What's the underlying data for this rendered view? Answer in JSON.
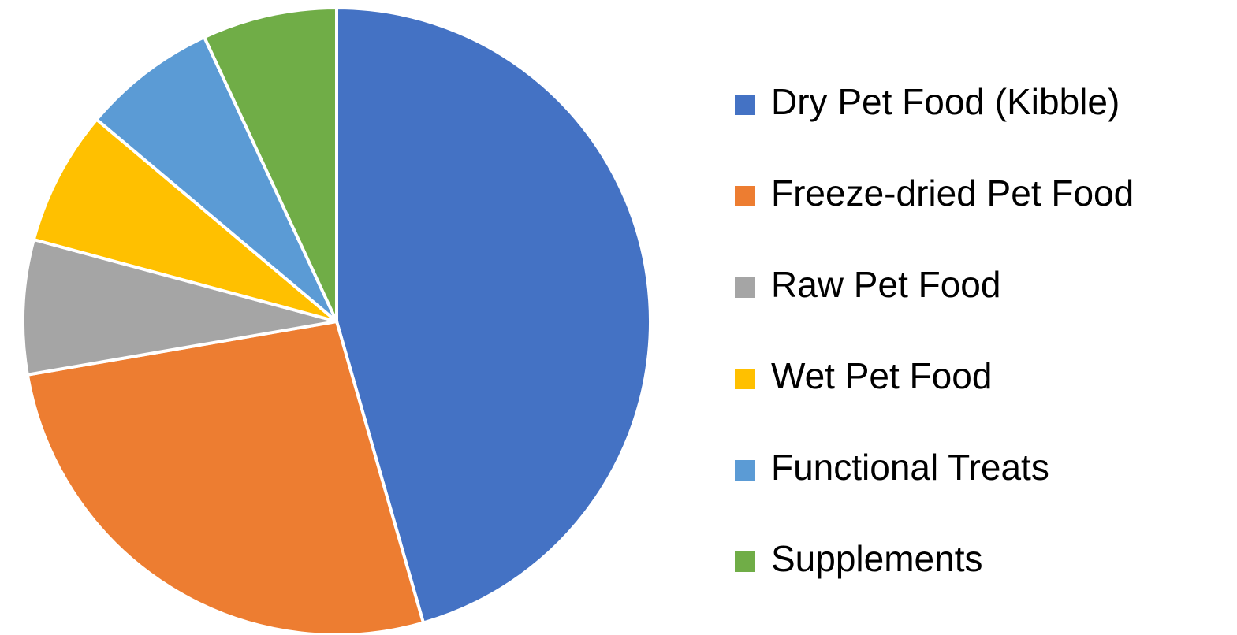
{
  "chart_data": {
    "type": "pie",
    "categories": [
      "Dry Pet Food (Kibble)",
      "Freeze-dried Pet Food",
      "Raw Pet Food",
      "Wet Pet Food",
      "Functional Treats",
      "Supplements"
    ],
    "values": [
      46,
      27,
      7,
      7,
      7,
      7
    ],
    "colors": [
      "#4472c4",
      "#ed7d31",
      "#a5a5a5",
      "#ffc000",
      "#5b9bd5",
      "#70ad47"
    ],
    "legend": "right"
  }
}
